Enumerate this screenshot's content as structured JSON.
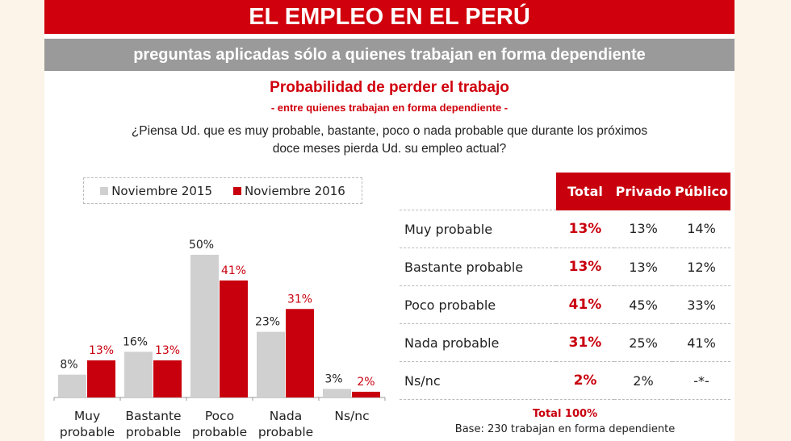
{
  "header": {
    "title": "EL EMPLEO EN EL PERÚ",
    "subtitle": "preguntas aplicadas sólo a quienes trabajan en forma dependiente"
  },
  "colors": {
    "red": "#c8000e",
    "gray": "#d0d0d0"
  },
  "chart_data": {
    "type": "bar",
    "title": "Probabilidad de perder el trabajo",
    "subtitle": "- entre quienes trabajan en forma dependiente -",
    "question": "¿Piensa Ud. que es muy probable, bastante, poco o nada probable que durante los próximos doce meses pierda Ud. su empleo actual?",
    "categories": [
      [
        "Muy",
        "probable"
      ],
      [
        "Bastante",
        "probable"
      ],
      [
        "Poco",
        "probable"
      ],
      [
        "Nada",
        "probable"
      ],
      [
        "Ns/nc",
        ""
      ]
    ],
    "series": [
      {
        "name": "Noviembre 2015",
        "color": "#d0d0d0",
        "values": [
          8,
          16,
          50,
          23,
          3
        ],
        "labels": [
          "8%",
          "16%",
          "50%",
          "23%",
          "3%"
        ]
      },
      {
        "name": "Noviembre 2016",
        "color": "#c8000e",
        "values": [
          13,
          13,
          41,
          31,
          2
        ],
        "labels": [
          "13%",
          "13%",
          "41%",
          "31%",
          "2%"
        ]
      }
    ],
    "legend": "top",
    "grid": false,
    "ylim": [
      0,
      55
    ]
  },
  "table": {
    "headers": [
      "Total",
      "Privado",
      "Público"
    ],
    "rows": [
      {
        "label": "Muy probable",
        "total": "13%",
        "privado": "13%",
        "publico": "14%"
      },
      {
        "label": "Bastante probable",
        "total": "13%",
        "privado": "13%",
        "publico": "12%"
      },
      {
        "label": "Poco probable",
        "total": "41%",
        "privado": "45%",
        "publico": "33%"
      },
      {
        "label": "Nada probable",
        "total": "31%",
        "privado": "25%",
        "publico": "41%"
      },
      {
        "label": "Ns/nc",
        "total": "2%",
        "privado": "2%",
        "publico": "-*-"
      }
    ],
    "total": "Total 100%",
    "base": "Base: 230 trabajan en forma dependiente"
  }
}
